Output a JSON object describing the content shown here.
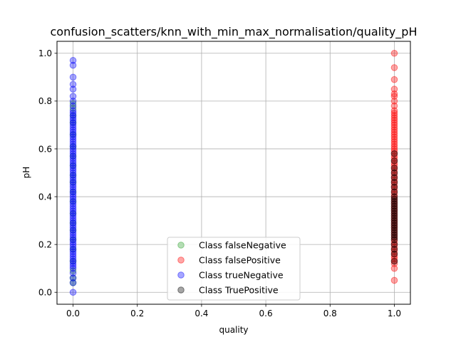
{
  "chart_data": {
    "type": "scatter",
    "title": "confusion_scatters/knn_with_min_max_normalisation/quality_pH",
    "xlabel": "quality",
    "ylabel": "pH",
    "xlim": [
      -0.05,
      1.05
    ],
    "ylim": [
      -0.05,
      1.05
    ],
    "x_ticks": [
      "0.0",
      "0.2",
      "0.4",
      "0.6",
      "0.8",
      "1.0"
    ],
    "y_ticks": [
      "0.0",
      "0.2",
      "0.4",
      "0.6",
      "0.8",
      "1.0"
    ],
    "grid": true,
    "legend_position": "lower-center",
    "series": [
      {
        "name": "Class falseNegative",
        "color": "#2ca02c",
        "x_value": 0.0,
        "y": [
          0.79,
          0.77,
          0.74,
          0.71,
          0.66,
          0.61,
          0.57,
          0.53,
          0.49,
          0.46,
          0.42,
          0.38,
          0.33,
          0.29,
          0.26,
          0.22,
          0.18,
          0.13,
          0.09,
          0.06,
          0.04
        ]
      },
      {
        "name": "Class falsePositive",
        "color": "#ff0000",
        "x_value": 1.0,
        "y": [
          1.0,
          0.94,
          0.89,
          0.85,
          0.83,
          0.82,
          0.8,
          0.78,
          0.76,
          0.75,
          0.74,
          0.73,
          0.72,
          0.71,
          0.7,
          0.69,
          0.68,
          0.67,
          0.66,
          0.65,
          0.64,
          0.63,
          0.62,
          0.61,
          0.6,
          0.59,
          0.58,
          0.57,
          0.56,
          0.55,
          0.54,
          0.53,
          0.52,
          0.51,
          0.5,
          0.49,
          0.48,
          0.47,
          0.46,
          0.45,
          0.44,
          0.43,
          0.42,
          0.41,
          0.4,
          0.39,
          0.38,
          0.37,
          0.36,
          0.35,
          0.34,
          0.33,
          0.32,
          0.31,
          0.3,
          0.29,
          0.28,
          0.27,
          0.26,
          0.25,
          0.24,
          0.23,
          0.22,
          0.21,
          0.2,
          0.19,
          0.18,
          0.17,
          0.16,
          0.15,
          0.14,
          0.13,
          0.12,
          0.1,
          0.05
        ]
      },
      {
        "name": "Class trueNegative",
        "color": "#0000ff",
        "x_value": 0.0,
        "y": [
          0.97,
          0.95,
          0.9,
          0.87,
          0.85,
          0.82,
          0.8,
          0.78,
          0.76,
          0.75,
          0.74,
          0.73,
          0.72,
          0.71,
          0.7,
          0.69,
          0.68,
          0.67,
          0.66,
          0.65,
          0.64,
          0.63,
          0.62,
          0.61,
          0.6,
          0.59,
          0.58,
          0.57,
          0.56,
          0.55,
          0.54,
          0.53,
          0.52,
          0.51,
          0.5,
          0.49,
          0.48,
          0.47,
          0.46,
          0.45,
          0.44,
          0.43,
          0.42,
          0.41,
          0.4,
          0.39,
          0.38,
          0.37,
          0.36,
          0.35,
          0.34,
          0.33,
          0.32,
          0.31,
          0.3,
          0.29,
          0.28,
          0.27,
          0.26,
          0.25,
          0.24,
          0.23,
          0.22,
          0.21,
          0.2,
          0.19,
          0.18,
          0.17,
          0.16,
          0.15,
          0.14,
          0.13,
          0.12,
          0.11,
          0.1,
          0.08,
          0.06,
          0.04,
          0.0
        ]
      },
      {
        "name": "Class TruePositive",
        "color": "#000000",
        "x_value": 1.0,
        "y": [
          0.58,
          0.55,
          0.52,
          0.5,
          0.48,
          0.46,
          0.44,
          0.42,
          0.4,
          0.39,
          0.38,
          0.37,
          0.36,
          0.35,
          0.34,
          0.33,
          0.32,
          0.31,
          0.3,
          0.29,
          0.28,
          0.27,
          0.26,
          0.25,
          0.24,
          0.23,
          0.22,
          0.2,
          0.18,
          0.16,
          0.13
        ]
      }
    ]
  }
}
